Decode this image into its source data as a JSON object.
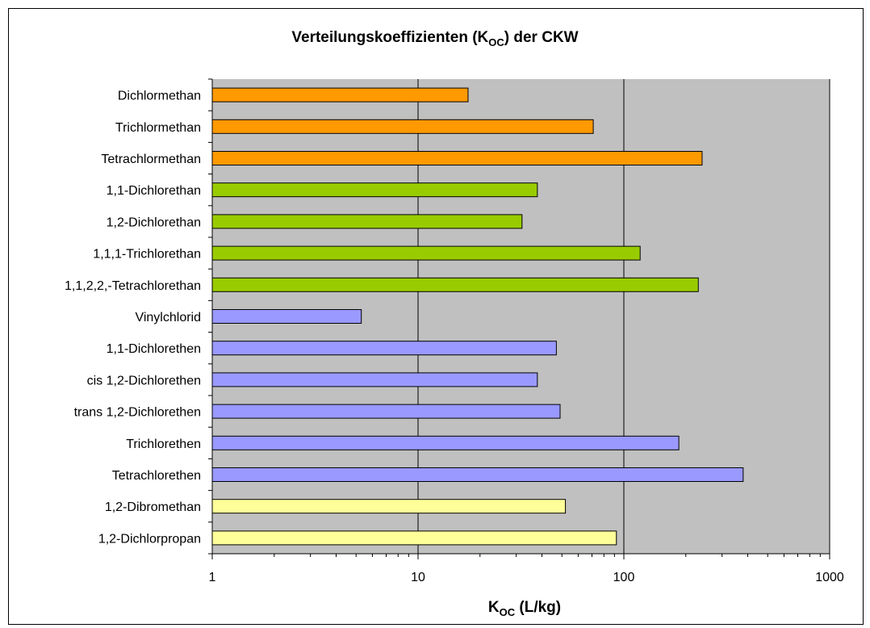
{
  "chart_data": {
    "type": "bar",
    "orientation": "horizontal",
    "title": "Verteilungskoeffizienten (K",
    "title_subscript": "OC",
    "title_suffix": ") der CKW",
    "xlabel": "K",
    "xlabel_subscript": "OC",
    "xlabel_suffix": " (L/kg)",
    "xscale": "log",
    "xlim": [
      1,
      1000
    ],
    "xticks": [
      "1",
      "10",
      "100",
      "1000"
    ],
    "grid": "major vertical",
    "legend": "none",
    "plot_background": "#c0c0c0",
    "categories": [
      "Dichlormethan",
      "Trichlormethan",
      "Tetrachlormethan",
      "1,1-Dichlorethan",
      "1,2-Dichlorethan",
      "1,1,1-Trichlorethan",
      "1,1,2,2,-Tetrachlorethan",
      "Vinylchlorid",
      "1,1-Dichlorethen",
      "cis 1,2-Dichlorethen",
      "trans 1,2-Dichlorethen",
      "Trichlorethen",
      "Tetrachlorethen",
      "1,2-Dibromethan",
      "1,2-Dichlorpropan"
    ],
    "values": [
      17.5,
      71,
      240,
      38,
      32,
      120,
      230,
      5.3,
      47,
      38,
      49,
      185,
      380,
      52,
      92
    ],
    "bar_colors": [
      "#ff9900",
      "#ff9900",
      "#ff9900",
      "#99cc00",
      "#99cc00",
      "#99cc00",
      "#99cc00",
      "#9999ff",
      "#9999ff",
      "#9999ff",
      "#9999ff",
      "#9999ff",
      "#9999ff",
      "#ffff99",
      "#ffff99"
    ]
  }
}
